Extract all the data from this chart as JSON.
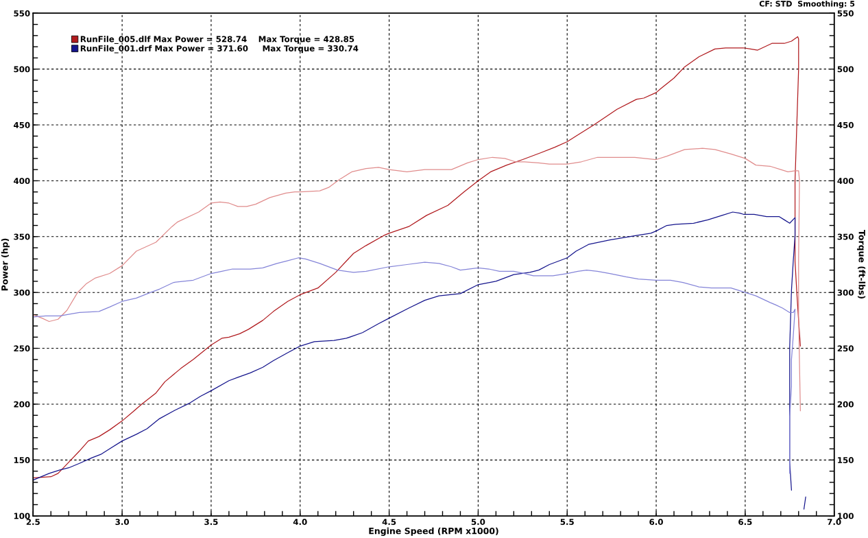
{
  "chart_data": {
    "type": "line",
    "xlabel": "Engine Speed (RPM x1000)",
    "ylabel": "Power (hp)",
    "y2label": "Torque (ft-lbs)",
    "annotations": [
      "CF: STD  Smoothing: 5"
    ],
    "xlim": [
      2.5,
      7.0
    ],
    "xticks": [
      2.5,
      {
        "value": 3,
        "label": "3.0"
      },
      3.5,
      {
        "value": 4,
        "label": "4.0"
      },
      4.5,
      {
        "value": 5,
        "label": "5.0"
      },
      5.5,
      {
        "value": 6,
        "label": "6.0"
      },
      6.5,
      {
        "value": 7,
        "label": "7.0"
      }
    ],
    "ylim": [
      100,
      550
    ],
    "yticks": [
      100,
      150,
      200,
      250,
      300,
      350,
      400,
      450,
      500,
      550
    ],
    "y2lim": [
      100,
      550
    ],
    "y2ticks": [
      100,
      150,
      200,
      250,
      300,
      350,
      400,
      450,
      500,
      550
    ],
    "grid": true,
    "legend": "top left",
    "series": [
      {
        "name": "RunFile_005.dlf Max Power = 528.74    Max Torque = 428.85",
        "color": "#b01a1e",
        "x": [
          2.5,
          2.6,
          2.64,
          2.7,
          2.76,
          2.81,
          2.87,
          2.93,
          3.0,
          3.06,
          3.11,
          3.19,
          3.24,
          3.33,
          3.4,
          3.5,
          3.56,
          3.6,
          3.66,
          3.71,
          3.79,
          3.85,
          3.93,
          4.0,
          4.1,
          4.2,
          4.3,
          4.37,
          4.47,
          4.5,
          4.61,
          4.71,
          4.83,
          4.92,
          5.0,
          5.07,
          5.16,
          5.25,
          5.35,
          5.43,
          5.5,
          5.55,
          5.65,
          5.78,
          5.89,
          5.93,
          6.0,
          6.03,
          6.1,
          6.16,
          6.24,
          6.33,
          6.39,
          6.49,
          6.53,
          6.57,
          6.65,
          6.72,
          6.76,
          6.795,
          6.8,
          6.8,
          6.79,
          6.78,
          6.78,
          6.79,
          6.8,
          6.81
        ],
        "values": [
          134,
          135,
          138,
          148,
          158,
          167,
          171,
          177,
          185,
          193,
          200,
          210,
          220,
          232,
          240,
          253,
          259,
          260,
          263,
          267,
          275,
          283,
          292,
          298,
          304,
          318,
          335,
          342,
          351,
          353,
          359,
          369,
          378,
          390,
          400,
          408,
          414,
          419,
          425,
          430,
          435,
          440,
          450,
          464,
          473,
          474,
          479,
          483,
          492,
          502,
          511,
          518,
          519,
          519,
          518,
          517,
          523,
          523,
          525,
          529,
          527,
          500,
          450,
          400,
          328,
          300,
          275,
          252
        ]
      },
      {
        "color": "#e08c8c",
        "axis": "y2",
        "x": [
          2.5,
          2.55,
          2.59,
          2.64,
          2.69,
          2.75,
          2.8,
          2.85,
          2.93,
          3.0,
          3.08,
          3.19,
          3.28,
          3.31,
          3.43,
          3.5,
          3.55,
          3.6,
          3.65,
          3.7,
          3.75,
          3.83,
          3.92,
          3.97,
          4.0,
          4.11,
          4.16,
          4.22,
          4.29,
          4.37,
          4.44,
          4.5,
          4.6,
          4.7,
          4.85,
          4.94,
          5.0,
          5.08,
          5.15,
          5.21,
          5.26,
          5.34,
          5.4,
          5.5,
          5.58,
          5.67,
          5.8,
          5.88,
          6.0,
          6.06,
          6.16,
          6.26,
          6.33,
          6.42,
          6.5,
          6.56,
          6.64,
          6.7,
          6.74,
          6.78,
          6.8,
          6.805,
          6.8,
          6.8,
          6.81
        ],
        "values": [
          280,
          277,
          274,
          276,
          284,
          300,
          308,
          313,
          317,
          324,
          337,
          345,
          359,
          363,
          372,
          380,
          381,
          380,
          377,
          377,
          379,
          385,
          389,
          390,
          390,
          391,
          394,
          401,
          408,
          411,
          412,
          410,
          408,
          410,
          410,
          416,
          419,
          421,
          420,
          417,
          417,
          416,
          415,
          415,
          417,
          421,
          421,
          421,
          419,
          422,
          428,
          429,
          428,
          424,
          420,
          414,
          413,
          410,
          408,
          409,
          409,
          400,
          330,
          280,
          194
        ]
      },
      {
        "name": "RunFile_001.drf Max Power = 371.60     Max Torque = 330.74",
        "color": "#14148c",
        "x": [
          2.5,
          2.59,
          2.65,
          2.7,
          2.76,
          2.83,
          2.88,
          2.93,
          3.0,
          3.08,
          3.14,
          3.21,
          3.29,
          3.38,
          3.44,
          3.5,
          3.6,
          3.65,
          3.72,
          3.79,
          3.85,
          3.93,
          4.0,
          4.08,
          4.19,
          4.26,
          4.35,
          4.44,
          4.5,
          4.61,
          4.7,
          4.78,
          4.9,
          5.0,
          5.1,
          5.2,
          5.29,
          5.34,
          5.4,
          5.5,
          5.55,
          5.62,
          5.74,
          5.89,
          5.97,
          6.0,
          6.06,
          6.11,
          6.21,
          6.29,
          6.37,
          6.43,
          6.47,
          6.49,
          6.55,
          6.62,
          6.69,
          6.72,
          6.75,
          6.78,
          6.78,
          6.77,
          6.76,
          6.75,
          6.75,
          6.75,
          6.75,
          6.76,
          6.8,
          6.83,
          6.84
        ],
        "values": [
          132,
          138,
          141,
          143,
          147,
          152,
          155,
          160,
          167,
          173,
          178,
          187,
          194,
          201,
          207,
          212,
          221,
          224,
          228,
          233,
          239,
          246,
          252,
          256,
          257,
          259,
          264,
          272,
          277,
          286,
          293,
          297,
          299,
          307,
          310,
          316,
          318,
          320,
          325,
          331,
          337,
          343,
          347,
          351,
          353,
          355,
          360,
          361,
          362,
          365,
          369,
          372,
          371,
          370,
          370,
          368,
          368,
          365,
          362,
          367,
          351,
          328,
          302,
          251,
          193,
          173,
          148,
          123,
          null,
          106,
          117
        ]
      },
      {
        "color": "#8484d8",
        "axis": "y2",
        "x": [
          2.5,
          2.57,
          2.65,
          2.72,
          2.76,
          2.87,
          2.93,
          3.0,
          3.08,
          3.16,
          3.21,
          3.29,
          3.4,
          3.5,
          3.56,
          3.62,
          3.72,
          3.79,
          3.87,
          3.92,
          3.99,
          4.03,
          4.11,
          4.21,
          4.3,
          4.37,
          4.5,
          4.6,
          4.7,
          4.78,
          4.85,
          4.9,
          5.0,
          5.06,
          5.12,
          5.2,
          5.26,
          5.31,
          5.42,
          5.5,
          5.56,
          5.61,
          5.67,
          5.74,
          5.83,
          5.9,
          6.0,
          6.08,
          6.15,
          6.24,
          6.31,
          6.42,
          6.5,
          6.56,
          6.64,
          6.67,
          6.71,
          6.75,
          6.77,
          6.78,
          6.77,
          6.76,
          6.76,
          6.75,
          6.75,
          6.75
        ],
        "values": [
          278,
          279,
          279,
          281,
          282,
          283,
          287,
          292,
          295,
          300,
          303,
          309,
          311,
          317,
          319,
          321,
          321,
          322,
          326,
          328,
          331,
          330,
          326,
          320,
          318,
          319,
          323,
          325,
          327,
          326,
          323,
          320,
          322,
          321,
          319,
          319,
          317,
          315,
          315,
          317,
          319,
          320,
          319,
          317,
          314,
          312,
          311,
          311,
          309,
          305,
          304,
          304,
          300,
          297,
          291,
          289,
          286,
          282,
          282,
          285,
          261,
          240,
          216,
          189,
          175,
          138
        ]
      }
    ]
  }
}
